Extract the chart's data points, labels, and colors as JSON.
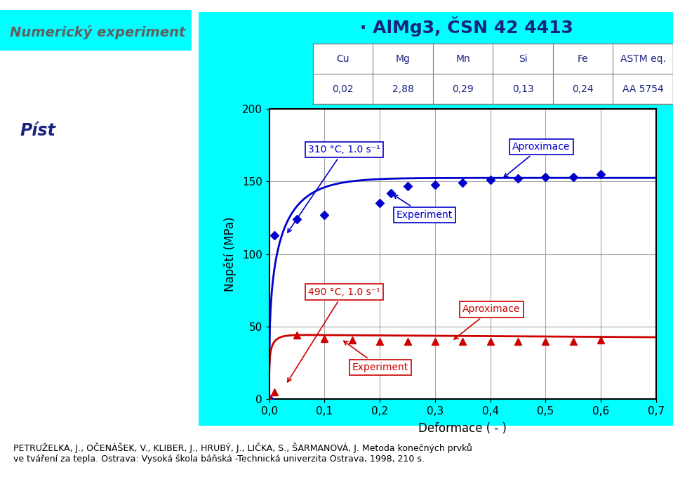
{
  "title_left": "Numerický experiment",
  "title_right": "· AlMg3, ČSN 42 4413",
  "subtitle_left": "Píst",
  "table_headers": [
    "Cu",
    "Mg",
    "Mn",
    "Si",
    "Fe",
    "ASTM eq."
  ],
  "table_values": [
    "0,02",
    "2,88",
    "0,29",
    "0,13",
    "0,24",
    "AA 5754"
  ],
  "ylabel": "Napětí (MPa)",
  "xlabel": "Deformace ( - )",
  "xlim": [
    0.0,
    0.7
  ],
  "ylim": [
    0,
    200
  ],
  "xticks": [
    0.0,
    0.1,
    0.2,
    0.3,
    0.4,
    0.5,
    0.6,
    0.7
  ],
  "yticks": [
    0,
    50,
    100,
    150,
    200
  ],
  "xtick_labels": [
    "0,0",
    "0,1",
    "0,2",
    "0,3",
    "0,4",
    "0,5",
    "0,6",
    "0,7"
  ],
  "background_color": "#00FFFF",
  "plot_bg_color": "#FFFFFF",
  "blue_color": "#0000CC",
  "red_color": "#CC0000",
  "blue_experiment_x": [
    0.0,
    0.01,
    0.05,
    0.1,
    0.2,
    0.22,
    0.25,
    0.3,
    0.35,
    0.4,
    0.45,
    0.5,
    0.55,
    0.6
  ],
  "blue_experiment_y": [
    0,
    113,
    124,
    127,
    135,
    142,
    147,
    148,
    149,
    151,
    152,
    153,
    153,
    155
  ],
  "red_experiment_x": [
    0.0,
    0.01,
    0.05,
    0.1,
    0.15,
    0.2,
    0.25,
    0.3,
    0.35,
    0.4,
    0.45,
    0.5,
    0.55,
    0.6
  ],
  "red_experiment_y": [
    0,
    5,
    44,
    42,
    41,
    40,
    40,
    40,
    40,
    40,
    40,
    40,
    40,
    41
  ],
  "footer_text": "PETRUŽELKA, J., OČENÁŠEK, V., KLIBER, J., HRUBÝ, J., LIČKA, S., ŠARMANOVÁ, J. Metoda konečných prvků\nve tváření za tepla. Ostrava: Vysoká škola báňská -Technická univerzita Ostrava, 1998, 210 s."
}
